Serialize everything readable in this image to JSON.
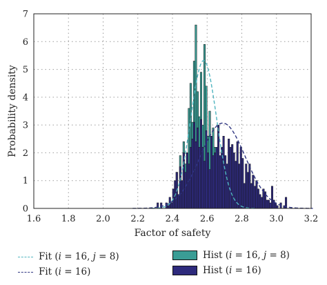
{
  "colors": {
    "hist_j8": "#3a9d95",
    "hist_i16": "#2e2a7c",
    "fit_j8": "#4fb4bf",
    "fit_i16": "#2e3580",
    "grid": "#9a9a9a"
  },
  "chart_data": {
    "type": "bar",
    "xlabel": "Factor of safety",
    "ylabel": "Probability density",
    "xlim": [
      1.6,
      3.2
    ],
    "ylim": [
      0,
      7
    ],
    "xticks": [
      "1.6",
      "1.8",
      "2.0",
      "2.2",
      "2.4",
      "2.6",
      "2.8",
      "3.0",
      "3.2"
    ],
    "yticks": [
      "0",
      "1",
      "2",
      "3",
      "4",
      "5",
      "6",
      "7"
    ],
    "grid": true,
    "bin_width": 0.01,
    "series": [
      {
        "name": "Hist (i = 16, j = 8)",
        "kind": "histogram",
        "bin_start": 2.4,
        "values": [
          0.2,
          0.7,
          1.3,
          0.5,
          1.9,
          0.9,
          2.4,
          1.6,
          2.0,
          3.6,
          4.5,
          3.1,
          5.3,
          6.6,
          4.2,
          3.3,
          4.9,
          3.0,
          5.9,
          4.4,
          2.6,
          3.5,
          1.6,
          2.9,
          2.2,
          1.2,
          0.9,
          1.5,
          0.6,
          0.4,
          0.2
        ]
      },
      {
        "name": "Hist (i = 16)",
        "kind": "histogram",
        "bin_start": 2.31,
        "values": [
          0.2,
          0,
          0.2,
          0,
          0,
          0.2,
          0.1,
          0.4,
          0.2,
          0.7,
          1.0,
          1.3,
          0.5,
          1.5,
          1.0,
          2.0,
          1.3,
          2.0,
          1.6,
          2.2,
          2.5,
          3.1,
          2.4,
          2.9,
          2.2,
          3.2,
          2.2,
          1.7,
          2.8,
          2.0,
          1.4,
          2.6,
          1.9,
          2.0,
          2.2,
          3.0,
          1.9,
          2.2,
          2.6,
          1.9,
          1.6,
          2.5,
          2.2,
          2.3,
          2.0,
          1.7,
          2.4,
          1.6,
          2.2,
          1.8,
          0.9,
          1.6,
          1.3,
          1.6,
          0.9,
          1.2,
          0.8,
          1.0,
          0.7,
          0.5,
          0.4,
          0.7,
          0.6,
          0.3,
          0.3,
          0.2,
          0.8,
          0.3,
          0.2,
          0.1,
          0,
          0.2,
          0,
          0.1,
          0.4
        ]
      },
      {
        "name": "Fit (i = 16, j = 8)",
        "kind": "normal_fit",
        "mu": 2.58,
        "sigma": 0.075
      },
      {
        "name": "Fit (i = 16)",
        "kind": "normal_fit",
        "mu": 2.69,
        "sigma": 0.13
      }
    ]
  },
  "legend": {
    "fit_j8": {
      "prefix": "Fit (",
      "i": "i",
      "mid1": " = 16, ",
      "j": "j",
      "mid2": " = 8)"
    },
    "fit_i16": {
      "prefix": "Fit (",
      "i": "i",
      "mid1": " = 16)"
    },
    "hist_j8": {
      "prefix": "Hist (",
      "i": "i",
      "mid1": " = 16, ",
      "j": "j",
      "mid2": " = 8)"
    },
    "hist_i16": {
      "prefix": "Hist (",
      "i": "i",
      "mid1": " = 16)"
    }
  }
}
